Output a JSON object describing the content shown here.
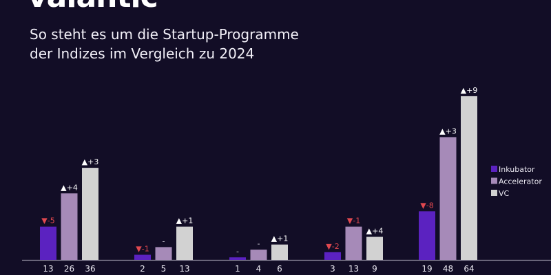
{
  "logo": "valantic",
  "subtitle_line1": "So steht es um die Startup-Programme",
  "subtitle_line2": "der Indizes im Vergleich zu 2024",
  "chart_data": {
    "type": "bar",
    "title": "So steht es um die Startup-Programme der Indizes im Vergleich zu 2024",
    "groups": 5,
    "series": [
      {
        "name": "Inkubator",
        "color": "#5b22c0",
        "values": [
          13,
          2,
          1,
          3,
          19
        ],
        "changes": [
          "-5",
          "-1",
          "-",
          "-2",
          "-8"
        ]
      },
      {
        "name": "Accelerator",
        "color": "#a68ab8",
        "values": [
          26,
          5,
          4,
          13,
          48
        ],
        "changes": [
          "+4",
          "-",
          "-",
          "-1",
          "+3"
        ]
      },
      {
        "name": "VC",
        "color": "#d2d2d2",
        "values": [
          36,
          13,
          6,
          9,
          64
        ],
        "changes": [
          "+3",
          "+1",
          "+1",
          "+4",
          "+9"
        ]
      }
    ],
    "legend_position": "right",
    "colors": {
      "up": "#ffffff",
      "down": "#e0484f",
      "axis": "#9a96a8",
      "background": "#120d26"
    },
    "grid": false
  }
}
